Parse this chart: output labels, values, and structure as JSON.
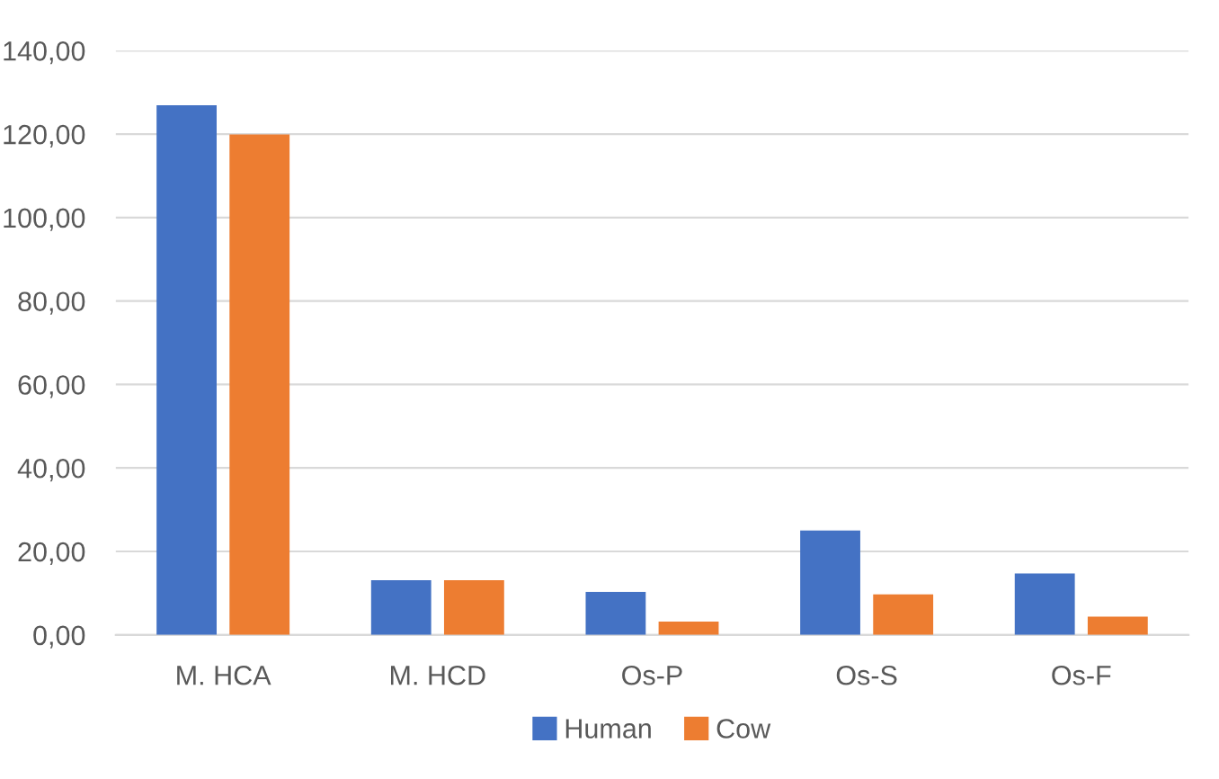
{
  "chart_data": {
    "type": "bar",
    "categories": [
      "M. HCA",
      "M. HCD",
      "Os-P",
      "Os-S",
      "Os-F"
    ],
    "series": [
      {
        "name": "Human",
        "color": "#4472c4",
        "values": [
          126.9,
          13.1,
          10.3,
          25.0,
          14.7
        ]
      },
      {
        "name": "Cow",
        "color": "#ed7d31",
        "values": [
          119.9,
          13.1,
          3.2,
          9.7,
          4.4
        ]
      }
    ],
    "ylim": [
      0,
      140
    ],
    "yticks": [
      {
        "value": 0,
        "label": "0,00"
      },
      {
        "value": 20,
        "label": "20,00"
      },
      {
        "value": 40,
        "label": "40,00"
      },
      {
        "value": 60,
        "label": "60,00"
      },
      {
        "value": 80,
        "label": "80,00"
      },
      {
        "value": 100,
        "label": "100,00"
      },
      {
        "value": 120,
        "label": "120,00"
      },
      {
        "value": 140,
        "label": "140,00"
      }
    ],
    "grid": "y",
    "legend": "bottom"
  }
}
